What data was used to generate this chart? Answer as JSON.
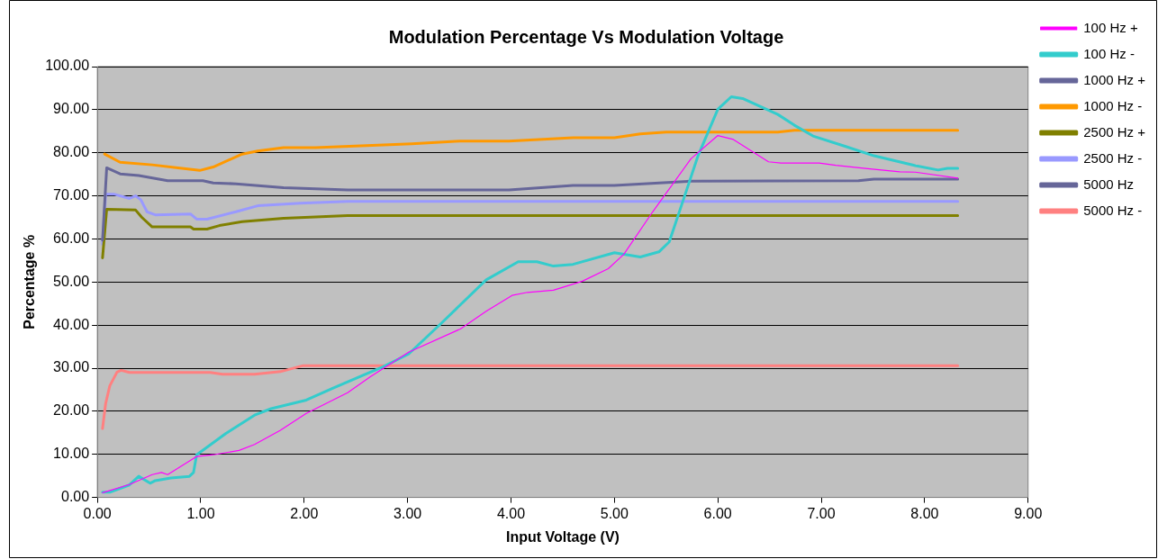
{
  "chart_data": {
    "type": "line",
    "title": "Modulation Percentage Vs Modulation Voltage",
    "xlabel": "Input Voltage (V)",
    "ylabel": "Percentage %",
    "xlim": [
      0,
      9
    ],
    "xticks": [
      {
        "value": 0,
        "label": "0.00"
      },
      {
        "value": 1,
        "label": "1.00"
      },
      {
        "value": 2,
        "label": "2.00"
      },
      {
        "value": 3,
        "label": "3.00"
      },
      {
        "value": 4,
        "label": "4.00"
      },
      {
        "value": 5,
        "label": "5.00"
      },
      {
        "value": 6,
        "label": "6.00"
      },
      {
        "value": 7,
        "label": "7.00"
      },
      {
        "value": 8,
        "label": "8.00"
      },
      {
        "value": 9,
        "label": "9.00"
      }
    ],
    "ylim": [
      0,
      100
    ],
    "yticks": [
      {
        "value": 0,
        "label": "0.00"
      },
      {
        "value": 10,
        "label": "10.00"
      },
      {
        "value": 20,
        "label": "20.00"
      },
      {
        "value": 30,
        "label": "30.00"
      },
      {
        "value": 40,
        "label": "40.00"
      },
      {
        "value": 50,
        "label": "50.00"
      },
      {
        "value": 60,
        "label": "60.00"
      },
      {
        "value": 70,
        "label": "70.00"
      },
      {
        "value": 80,
        "label": "80.00"
      },
      {
        "value": 90,
        "label": "90.00"
      },
      {
        "value": 100,
        "label": "100.00"
      }
    ],
    "grid": "y",
    "legend": "top right",
    "marker": "none",
    "line_style": "solid",
    "series": [
      {
        "name": "100 Hz +",
        "color": "#ff00ff",
        "x": [
          0.05,
          0.31,
          0.53,
          0.62,
          0.68,
          0.96,
          1.12,
          1.37,
          1.52,
          1.77,
          2.02,
          2.42,
          2.64,
          3.01,
          3.51,
          3.76,
          4.01,
          4.16,
          4.41,
          4.6,
          4.69,
          4.94,
          5.09,
          5.37,
          5.74,
          6,
          6.15,
          6.49,
          6.61,
          6.98,
          7.14,
          7.45,
          7.76,
          7.91,
          8.32
        ],
        "values": [
          1.1,
          3,
          5.3,
          5.8,
          5.3,
          9.5,
          9.9,
          10.9,
          12.3,
          15.6,
          19.5,
          24.3,
          28,
          33.7,
          39.1,
          43.2,
          46.9,
          47.6,
          48.1,
          49.5,
          50.2,
          53.1,
          56.4,
          66.3,
          78.6,
          84,
          83.1,
          77.9,
          77.6,
          77.6,
          77.1,
          76.3,
          75.6,
          75.5,
          74.1
        ]
      },
      {
        "name": "100 Hz -",
        "color": "#33cccc",
        "x": [
          0.05,
          0.12,
          0.31,
          0.4,
          0.51,
          0.56,
          0.71,
          0.89,
          0.93,
          0.96,
          1.24,
          1.52,
          1.68,
          2.02,
          2.27,
          2.61,
          2.76,
          3.01,
          3.32,
          3.76,
          4.07,
          4.25,
          4.41,
          4.6,
          5,
          5.25,
          5.43,
          5.53,
          5.65,
          5.81,
          6,
          6.13,
          6.24,
          6.58,
          6.74,
          6.92,
          7.23,
          7.51,
          7.91,
          8.13,
          8.22,
          8.32
        ],
        "values": [
          1.2,
          1.2,
          2.9,
          4.9,
          3.3,
          3.9,
          4.5,
          4.9,
          5.8,
          9.9,
          14.8,
          19.1,
          20.6,
          22.6,
          25.3,
          28.8,
          30.3,
          33.3,
          40.3,
          50.5,
          54.7,
          54.7,
          53.7,
          54.1,
          56.8,
          55.8,
          57,
          59.3,
          67.9,
          79.4,
          90.1,
          93,
          92.6,
          88.9,
          86.4,
          83.9,
          81.5,
          79.3,
          77,
          76,
          76.4,
          76.4
        ]
      },
      {
        "name": "1000 Hz +",
        "color": "#666699",
        "x": [
          0.05,
          0.09,
          0.22,
          0.4,
          0.68,
          1.02,
          1.12,
          1.34,
          1.8,
          2.42,
          3.98,
          4.6,
          5,
          5.74,
          7.36,
          7.51,
          8.32
        ],
        "values": [
          59.7,
          76.5,
          75.1,
          74.7,
          73.5,
          73.5,
          73,
          72.8,
          71.9,
          71.4,
          71.4,
          72.4,
          72.4,
          73.4,
          73.5,
          73.9,
          73.9
        ]
      },
      {
        "name": "1000 Hz -",
        "color": "#ff9900",
        "x": [
          0.07,
          0.22,
          0.53,
          0.78,
          0.99,
          1.12,
          1.4,
          1.55,
          1.8,
          2.11,
          3.04,
          3.5,
          3.98,
          4.6,
          5,
          5.25,
          5.5,
          6.58,
          6.74,
          8.32
        ],
        "values": [
          79.7,
          77.8,
          77.2,
          76.5,
          75.9,
          76.7,
          79.7,
          80.4,
          81.2,
          81.2,
          82.1,
          82.7,
          82.7,
          83.5,
          83.5,
          84.4,
          84.8,
          84.8,
          85.2,
          85.2
        ]
      },
      {
        "name": "2500 Hz +",
        "color": "#808000",
        "x": [
          0.05,
          0.09,
          0.37,
          0.43,
          0.53,
          0.9,
          0.93,
          1.06,
          1.18,
          1.4,
          1.8,
          2.42,
          8.32
        ],
        "values": [
          55.6,
          66.9,
          66.7,
          65,
          62.8,
          62.8,
          62.3,
          62.3,
          63.1,
          64,
          64.8,
          65.4,
          65.4
        ]
      },
      {
        "name": "2500 Hz -",
        "color": "#9999ff",
        "x": [
          0.05,
          0.08,
          0.16,
          0.31,
          0.37,
          0.42,
          0.48,
          0.56,
          0.9,
          0.96,
          1.06,
          1.34,
          1.55,
          1.96,
          2.42,
          8.32
        ],
        "values": [
          58.8,
          70.4,
          70.4,
          69.4,
          70,
          69.1,
          66.3,
          65.6,
          65.8,
          64.6,
          64.6,
          66.3,
          67.7,
          68.3,
          68.7,
          68.7
        ]
      },
      {
        "name": "5000 Hz",
        "color": "#666699"
      },
      {
        "name": "5000 Hz -",
        "color": "#ff8080",
        "x": [
          0.05,
          0.08,
          0.12,
          0.19,
          0.23,
          0.31,
          1.09,
          1.21,
          1.52,
          1.77,
          1.99,
          8.32
        ],
        "values": [
          16,
          21.8,
          25.9,
          29.1,
          29.5,
          29,
          29,
          28.6,
          28.6,
          29.2,
          30.6,
          30.6
        ]
      }
    ]
  }
}
